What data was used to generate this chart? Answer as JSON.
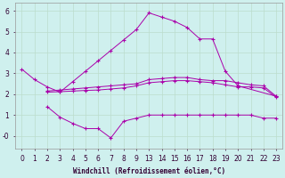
{
  "xlabel": "Windchill (Refroidissement éolien,°C)",
  "background_color": "#cff0ee",
  "line_color": "#aa00aa",
  "grid_color": "#bbddcc",
  "xtick_labels": [
    "0",
    "1",
    "2",
    "3",
    "4",
    "5",
    "6",
    "7",
    "8",
    "9",
    "13",
    "14",
    "15",
    "16",
    "17",
    "18",
    "19",
    "20",
    "21",
    "22",
    "23"
  ],
  "ylim": [
    -0.6,
    6.4
  ],
  "ytick_labels": [
    "-0",
    "1",
    "2",
    "3",
    "4",
    "5",
    "6"
  ],
  "ytick_vals": [
    0,
    1,
    2,
    3,
    4,
    5,
    6
  ],
  "l1_xi": [
    0,
    1,
    2,
    3,
    4,
    5,
    6,
    7,
    8,
    9,
    10,
    11,
    12,
    13,
    14,
    15,
    16,
    17,
    20
  ],
  "l1_y": [
    3.2,
    2.7,
    2.35,
    2.1,
    2.6,
    3.1,
    3.6,
    4.1,
    4.6,
    5.1,
    5.9,
    5.7,
    5.5,
    5.2,
    4.65,
    4.65,
    3.1,
    2.4,
    1.9
  ],
  "l2_xi": [
    2,
    3,
    4,
    5,
    6,
    7,
    8,
    9,
    10,
    11,
    12,
    13,
    14,
    15,
    16,
    17,
    18,
    19,
    20
  ],
  "l2_y": [
    2.15,
    2.2,
    2.25,
    2.3,
    2.35,
    2.4,
    2.45,
    2.5,
    2.7,
    2.75,
    2.8,
    2.8,
    2.7,
    2.65,
    2.65,
    2.55,
    2.45,
    2.4,
    1.9
  ],
  "l3_xi": [
    2,
    3,
    4,
    5,
    6,
    7,
    8,
    9,
    10,
    11,
    12,
    13,
    14,
    15,
    16,
    17,
    18,
    19,
    20
  ],
  "l3_y": [
    2.1,
    2.12,
    2.15,
    2.18,
    2.2,
    2.25,
    2.3,
    2.4,
    2.55,
    2.6,
    2.65,
    2.65,
    2.6,
    2.55,
    2.45,
    2.35,
    2.35,
    2.3,
    1.85
  ],
  "l4_xi": [
    2,
    3,
    4,
    5,
    6,
    7,
    8,
    9,
    10,
    11,
    12,
    13,
    14,
    15,
    16,
    17,
    18,
    19,
    20
  ],
  "l4_y": [
    1.4,
    0.9,
    0.6,
    0.35,
    0.35,
    -0.1,
    0.7,
    0.85,
    1.0,
    1.0,
    1.0,
    1.0,
    1.0,
    1.0,
    1.0,
    1.0,
    1.0,
    0.85,
    0.85
  ]
}
